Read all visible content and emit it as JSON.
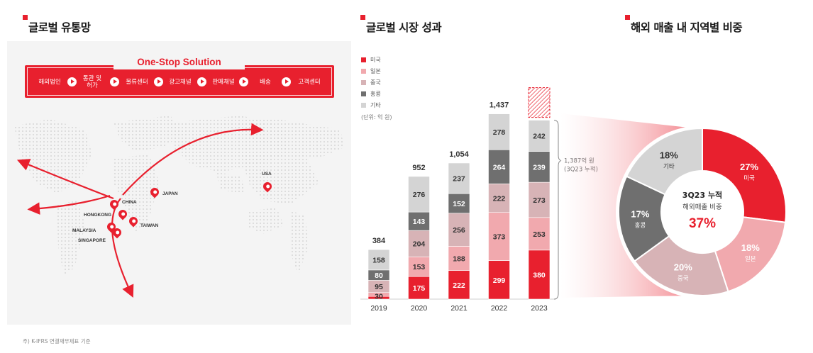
{
  "titles": {
    "network": "글로벌 유통망",
    "market": "글로벌 시장 성과",
    "regions": "해외 매출 내 지역별 비중"
  },
  "one_stop": {
    "title": "One-Stop Solution",
    "steps": [
      "해외법인",
      "통관 및\n허가",
      "물류센터",
      "광고채널",
      "판매채널",
      "배송",
      "고객센터"
    ]
  },
  "map": {
    "cities": [
      "CHINA",
      "JAPAN",
      "HONGKONG",
      "TAIWAN",
      "MALAYSIA",
      "SINGAPORE",
      "USA"
    ]
  },
  "legend": {
    "items": [
      "미국",
      "일본",
      "중국",
      "홍콩",
      "기타"
    ],
    "unit": "(단위: 억 원)"
  },
  "colors": {
    "accent": "#e8202e",
    "us": "#e8202e",
    "japan": "#f1a9ae",
    "china": "#d7b3b6",
    "hongkong": "#6f6f6f",
    "other": "#d4d4d4"
  },
  "chart_data": [
    {
      "type": "bar",
      "stacked": true,
      "categories": [
        "2019",
        "2020",
        "2021",
        "2022",
        "2023"
      ],
      "series": [
        {
          "name": "미국",
          "values": [
            21,
            175,
            222,
            299,
            380
          ]
        },
        {
          "name": "일본",
          "values": [
            30,
            153,
            188,
            373,
            253
          ]
        },
        {
          "name": "중국",
          "values": [
            95,
            204,
            256,
            222,
            273
          ]
        },
        {
          "name": "홍콩",
          "values": [
            80,
            143,
            152,
            264,
            239
          ]
        },
        {
          "name": "기타",
          "values": [
            158,
            276,
            237,
            278,
            242
          ]
        }
      ],
      "totals": [
        "384",
        "952",
        "1,054",
        "1,437",
        ""
      ],
      "note": "1,387억 원\n(3Q23 누적)",
      "title": "",
      "xlabel": "",
      "ylabel": ""
    },
    {
      "type": "pie",
      "labels": [
        "미국",
        "일본",
        "중국",
        "홍콩",
        "기타"
      ],
      "values": [
        27,
        18,
        20,
        17,
        18
      ],
      "center": {
        "line1": "3Q23 누적",
        "line2": "해외매출 비중",
        "value": "37%"
      }
    }
  ],
  "footnote": "주) K-IFRS 연결재무제표 기준"
}
